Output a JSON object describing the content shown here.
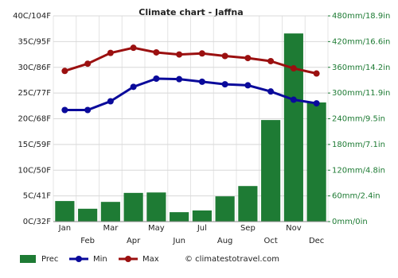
{
  "chart_data": {
    "type": "combo",
    "title": "Climate chart - Jaffna",
    "categories": [
      "Jan",
      "Feb",
      "Mar",
      "Apr",
      "May",
      "Jun",
      "Jul",
      "Aug",
      "Sep",
      "Oct",
      "Nov",
      "Dec"
    ],
    "series": [
      {
        "name": "Prec",
        "type": "bar",
        "axis": "y2",
        "color": "#1e7b34",
        "values": [
          48,
          30,
          46,
          67,
          68,
          22,
          26,
          59,
          83,
          237,
          439,
          278
        ]
      },
      {
        "name": "Min",
        "type": "line",
        "color": "#0a0a9b",
        "values": [
          21.7,
          21.7,
          23.4,
          26.2,
          27.8,
          27.7,
          27.2,
          26.7,
          26.5,
          25.3,
          23.7,
          23.0
        ]
      },
      {
        "name": "Max",
        "type": "line",
        "color": "#9b1010",
        "values": [
          29.3,
          30.7,
          32.8,
          33.8,
          32.9,
          32.5,
          32.7,
          32.2,
          31.8,
          31.2,
          29.8,
          28.8
        ]
      }
    ],
    "ylim": [
      0,
      40
    ],
    "yticks": [
      {
        "value": 0,
        "label": "0C/32F"
      },
      {
        "value": 5,
        "label": "5C/41F"
      },
      {
        "value": 10,
        "label": "10C/50F"
      },
      {
        "value": 15,
        "label": "15C/59F"
      },
      {
        "value": 20,
        "label": "20C/68F"
      },
      {
        "value": 25,
        "label": "25C/77F"
      },
      {
        "value": 30,
        "label": "30C/86F"
      },
      {
        "value": 35,
        "label": "35C/95F"
      },
      {
        "value": 40,
        "label": "40C/104F"
      }
    ],
    "y2lim": [
      0,
      480
    ],
    "y2ticks": [
      {
        "value": 0,
        "label": "0mm/0in"
      },
      {
        "value": 60,
        "label": "60mm/2.4in"
      },
      {
        "value": 120,
        "label": "120mm/4.8in"
      },
      {
        "value": 180,
        "label": "180mm/7.1in"
      },
      {
        "value": 240,
        "label": "240mm/9.5in"
      },
      {
        "value": 300,
        "label": "300mm/11.9in"
      },
      {
        "value": 360,
        "label": "360mm/14.2in"
      },
      {
        "value": 420,
        "label": "420mm/16.6in"
      },
      {
        "value": 480,
        "label": "480mm/18.9in"
      }
    ],
    "grid": true,
    "credit": "© climatestotravel.com"
  }
}
